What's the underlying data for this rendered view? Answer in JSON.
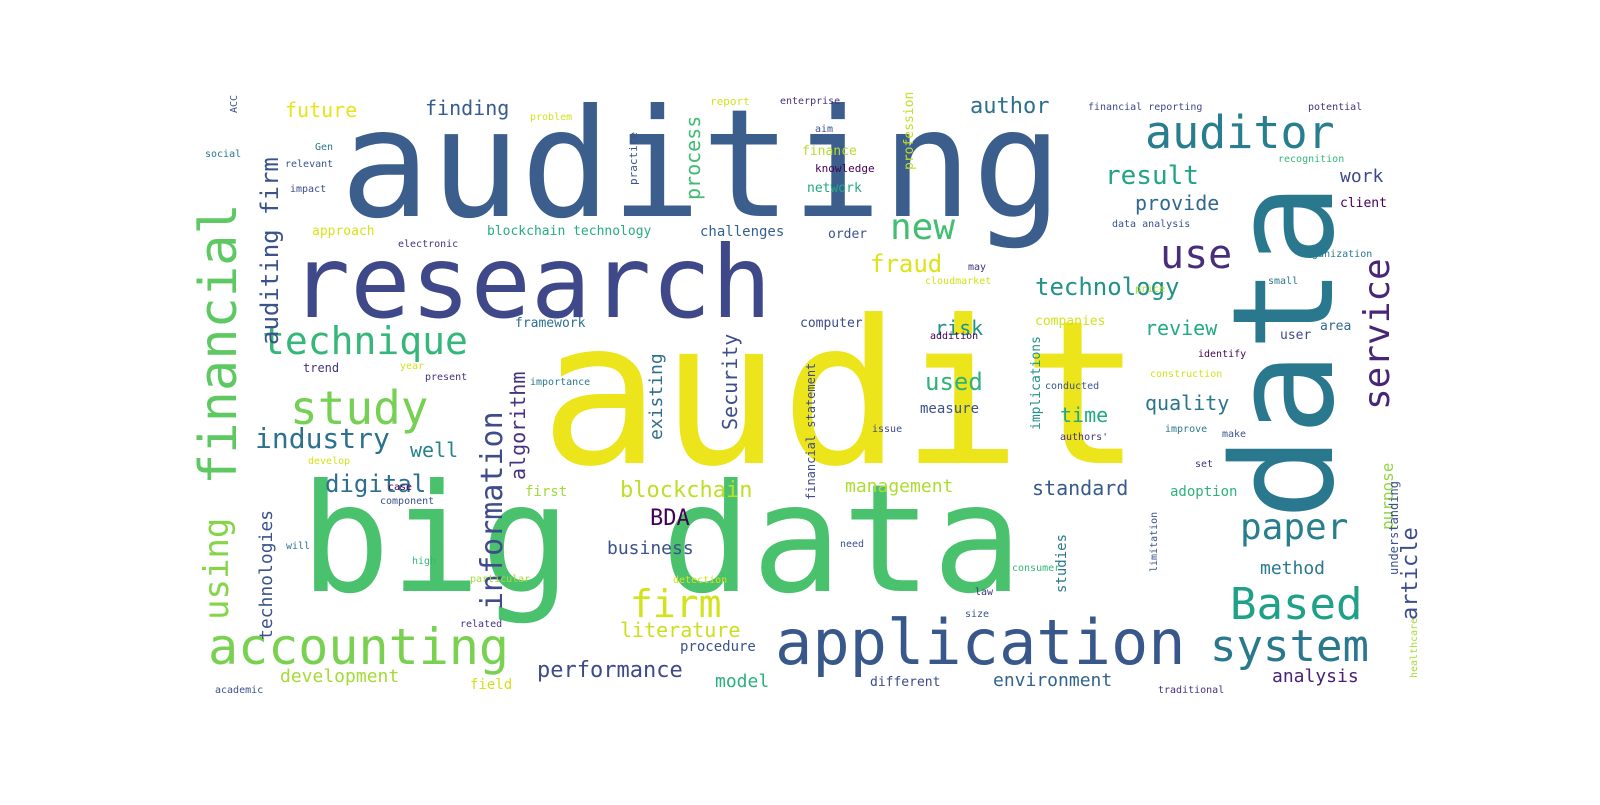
{
  "words": [
    {
      "text": "auditing",
      "color": "#3b5e8c"
    },
    {
      "text": "audit",
      "color": "#ece51b"
    },
    {
      "text": "big data",
      "color": "#4ac16d"
    },
    {
      "text": "research",
      "color": "#3f4889"
    },
    {
      "text": "data",
      "color": "#2a788e"
    },
    {
      "text": "application",
      "color": "#38588c"
    },
    {
      "text": "financial",
      "color": "#5ec962"
    },
    {
      "text": "accounting",
      "color": "#7ad151"
    },
    {
      "text": "using",
      "color": "#86d549"
    },
    {
      "text": "auditor",
      "color": "#287d8e"
    },
    {
      "text": "service",
      "color": "#482677"
    },
    {
      "text": "Based",
      "color": "#1fa088"
    },
    {
      "text": "system",
      "color": "#2a788e"
    },
    {
      "text": "paper",
      "color": "#277f8e"
    },
    {
      "text": "technique",
      "color": "#35b779"
    },
    {
      "text": "study",
      "color": "#75d054"
    },
    {
      "text": "firm",
      "color": "#d2e21b"
    },
    {
      "text": "new",
      "color": "#42be71"
    },
    {
      "text": "use",
      "color": "#472d7b"
    },
    {
      "text": "information",
      "color": "#3e4c8a"
    },
    {
      "text": "industry",
      "color": "#2c718e"
    },
    {
      "text": "auditing firm",
      "color": "#3a538b"
    },
    {
      "text": "result",
      "color": "#20a386"
    },
    {
      "text": "technology",
      "color": "#21918c"
    },
    {
      "text": "blockchain",
      "color": "#bddf26"
    },
    {
      "text": "fraud",
      "color": "#dde318"
    },
    {
      "text": "digital",
      "color": "#2e6e8e"
    },
    {
      "text": "performance",
      "color": "#3e4a89"
    },
    {
      "text": "article",
      "color": "#3d4e8a"
    },
    {
      "text": "algorithm",
      "color": "#46327e"
    },
    {
      "text": "technologies",
      "color": "#3b528b"
    },
    {
      "text": "future",
      "color": "#e7e419"
    },
    {
      "text": "author",
      "color": "#2d708e"
    },
    {
      "text": "finding",
      "color": "#365c8d"
    },
    {
      "text": "process",
      "color": "#3fbc73"
    },
    {
      "text": "provide",
      "color": "#31688e"
    },
    {
      "text": "work",
      "color": "#3e4989"
    },
    {
      "text": "existing",
      "color": "#2e6e8e"
    },
    {
      "text": "used",
      "color": "#2db27d"
    },
    {
      "text": "risk",
      "color": "#21918c"
    },
    {
      "text": "review",
      "color": "#23a983"
    },
    {
      "text": "quality",
      "color": "#2c738e"
    },
    {
      "text": "time",
      "color": "#22a884"
    },
    {
      "text": "well",
      "color": "#26828e"
    },
    {
      "text": "Security",
      "color": "#3c4f8a"
    },
    {
      "text": "management",
      "color": "#addc30"
    },
    {
      "text": "standard",
      "color": "#375a8c"
    },
    {
      "text": "BDA",
      "color": "#440154"
    },
    {
      "text": "business",
      "color": "#3b528b"
    },
    {
      "text": "literature",
      "color": "#c8e020"
    },
    {
      "text": "development",
      "color": "#a5db36"
    },
    {
      "text": "model",
      "color": "#2ab07f"
    },
    {
      "text": "environment",
      "color": "#33638d"
    },
    {
      "text": "analysis",
      "color": "#482173"
    },
    {
      "text": "method",
      "color": "#2a788e"
    },
    {
      "text": "purpose",
      "color": "#90d743"
    },
    {
      "text": "procedure",
      "color": "#3b528b"
    },
    {
      "text": "adoption",
      "color": "#2db27d"
    },
    {
      "text": "first",
      "color": "#9fda3a"
    },
    {
      "text": "challenges",
      "color": "#35608d"
    },
    {
      "text": "blockchain technology",
      "color": "#26ad81"
    },
    {
      "text": "approach",
      "color": "#d8e219"
    },
    {
      "text": "order",
      "color": "#3b528b"
    },
    {
      "text": "computer",
      "color": "#3e4a89"
    },
    {
      "text": "framework",
      "color": "#2d708e"
    },
    {
      "text": "network",
      "color": "#22a884"
    },
    {
      "text": "finance",
      "color": "#b5de2b"
    },
    {
      "text": "knowledge",
      "color": "#440154"
    },
    {
      "text": "profession",
      "color": "#c2df23"
    },
    {
      "text": "practice",
      "color": "#3b528b"
    },
    {
      "text": "financial statement",
      "color": "#3e4a89"
    },
    {
      "text": "implications",
      "color": "#21918c"
    },
    {
      "text": "companies",
      "color": "#d2e21b"
    },
    {
      "text": "user",
      "color": "#3e4989"
    },
    {
      "text": "area",
      "color": "#31688e"
    },
    {
      "text": "client",
      "color": "#440154"
    },
    {
      "text": "understanding",
      "color": "#3b528b"
    },
    {
      "text": "healthcare",
      "color": "#a5db36"
    },
    {
      "text": "report",
      "color": "#d2e21b"
    },
    {
      "text": "enterprise",
      "color": "#46327e"
    },
    {
      "text": "aim",
      "color": "#3b528b"
    },
    {
      "text": "financial reporting",
      "color": "#3e4a89"
    },
    {
      "text": "potential",
      "color": "#46327e"
    },
    {
      "text": "recognition",
      "color": "#35b779"
    },
    {
      "text": "data analysis",
      "color": "#3b528b"
    },
    {
      "text": "organization",
      "color": "#2a788e"
    },
    {
      "text": "price",
      "color": "#b5de2b"
    },
    {
      "text": "small",
      "color": "#2a788e"
    },
    {
      "text": "identify",
      "color": "#440154"
    },
    {
      "text": "construction",
      "color": "#d2e21b"
    },
    {
      "text": "improve",
      "color": "#2a788e"
    },
    {
      "text": "make",
      "color": "#3b528b"
    },
    {
      "text": "set",
      "color": "#46327e"
    },
    {
      "text": "conducted",
      "color": "#3b528b"
    },
    {
      "text": "authors'",
      "color": "#46327e"
    },
    {
      "text": "issue",
      "color": "#3e4a89"
    },
    {
      "text": "measure",
      "color": "#3b528b"
    },
    {
      "text": "addition",
      "color": "#440154"
    },
    {
      "text": "cloudmarket",
      "color": "#d2e21b"
    },
    {
      "text": "may",
      "color": "#46327e"
    },
    {
      "text": "importance",
      "color": "#2a788e"
    },
    {
      "text": "year",
      "color": "#d2e21b"
    },
    {
      "text": "present",
      "color": "#46327e"
    },
    {
      "text": "trend",
      "color": "#46327e"
    },
    {
      "text": "develop",
      "color": "#d2e21b"
    },
    {
      "text": "case",
      "color": "#440154"
    },
    {
      "text": "component",
      "color": "#3b528b"
    },
    {
      "text": "will",
      "color": "#2a788e"
    },
    {
      "text": "high",
      "color": "#35b779"
    },
    {
      "text": "particular",
      "color": "#a5db36"
    },
    {
      "text": "need",
      "color": "#3b528b"
    },
    {
      "text": "detection",
      "color": "#d2e21b"
    },
    {
      "text": "related",
      "color": "#46327e"
    },
    {
      "text": "field",
      "color": "#d2e21b"
    },
    {
      "text": "different",
      "color": "#3e4a89"
    },
    {
      "text": "size",
      "color": "#3b528b"
    },
    {
      "text": "law",
      "color": "#46327e"
    },
    {
      "text": "studies",
      "color": "#2a788e"
    },
    {
      "text": "limitation",
      "color": "#3b528b"
    },
    {
      "text": "consumer",
      "color": "#35b779"
    },
    {
      "text": "traditional",
      "color": "#46327e"
    },
    {
      "text": "academic",
      "color": "#3b528b"
    },
    {
      "text": "social",
      "color": "#2a788e"
    },
    {
      "text": "relevant",
      "color": "#3b528b"
    },
    {
      "text": "impact",
      "color": "#3e4a89"
    },
    {
      "text": "electronic",
      "color": "#46327e"
    },
    {
      "text": "problem",
      "color": "#d2e21b"
    },
    {
      "text": "Gen",
      "color": "#2a788e"
    },
    {
      "text": "ACC",
      "color": "#3b528b"
    }
  ]
}
